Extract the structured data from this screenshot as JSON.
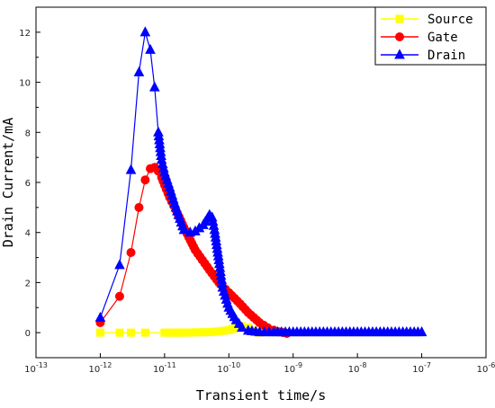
{
  "chart_data": {
    "type": "line",
    "title": "",
    "xlabel": "Transient time/s",
    "ylabel": "Drain Current/mA",
    "xscale": "log",
    "xlim": [
      1e-13,
      1e-06
    ],
    "ylim": [
      -1,
      13
    ],
    "xticks": [
      {
        "value": 1e-13,
        "base": "10",
        "exp": "-13"
      },
      {
        "value": 1e-12,
        "base": "10",
        "exp": "-12"
      },
      {
        "value": 1e-11,
        "base": "10",
        "exp": "-11"
      },
      {
        "value": 1e-10,
        "base": "10",
        "exp": "-10"
      },
      {
        "value": 1e-09,
        "base": "10",
        "exp": "-9"
      },
      {
        "value": 1e-08,
        "base": "10",
        "exp": "-8"
      },
      {
        "value": 1e-07,
        "base": "10",
        "exp": "-7"
      },
      {
        "value": 1e-06,
        "base": "10",
        "exp": "-6"
      }
    ],
    "yticks": [
      0,
      2,
      4,
      6,
      8,
      10,
      12
    ],
    "grid": false,
    "legend_position": "top-right",
    "series": [
      {
        "name": "Source",
        "color": "#ffff00",
        "marker": "square",
        "x": [
          1e-12,
          2e-12,
          3e-12,
          5e-12,
          1e-11,
          2e-11,
          3e-11,
          5e-11,
          7e-11,
          1e-10,
          1.3e-10,
          1.6e-10,
          2e-10,
          2.5e-10,
          3e-10
        ],
        "y": [
          0.0,
          0.0,
          0.0,
          0.0,
          0.0,
          0.0,
          0.01,
          0.02,
          0.05,
          0.1,
          0.2,
          0.26,
          0.2,
          0.08,
          0.0
        ]
      },
      {
        "name": "Gate",
        "color": "#ff0000",
        "marker": "circle",
        "x": [
          1e-12,
          2e-12,
          3e-12,
          4e-12,
          5e-12,
          6e-12,
          7e-12,
          8e-12,
          9e-12,
          1e-11,
          1.2e-11,
          1.5e-11,
          2e-11,
          3e-11,
          5e-11,
          7e-11,
          1e-10,
          1.5e-10,
          2e-10,
          3e-10,
          4e-10,
          5e-10,
          6e-10,
          7e-10,
          8e-10
        ],
        "y": [
          0.4,
          1.45,
          3.2,
          5.0,
          6.1,
          6.55,
          6.6,
          6.45,
          6.2,
          5.9,
          5.4,
          4.9,
          4.2,
          3.3,
          2.5,
          2.0,
          1.6,
          1.15,
          0.8,
          0.4,
          0.2,
          0.1,
          0.03,
          0.0,
          -0.03
        ]
      },
      {
        "name": "Drain",
        "color": "#0000ff",
        "marker": "triangle",
        "x": [
          1e-12,
          2e-12,
          3e-12,
          4e-12,
          5e-12,
          6e-12,
          7e-12,
          8e-12,
          9e-12,
          1e-11,
          1.2e-11,
          1.5e-11,
          2e-11,
          2.5e-11,
          3e-11,
          4e-11,
          5e-11,
          5.5e-11,
          6e-11,
          7e-11,
          8e-11,
          1e-10,
          1.3e-10,
          1.6e-10,
          2e-10,
          3e-10,
          5e-10,
          1e-09,
          1e-08,
          1e-07
        ],
        "y": [
          0.6,
          2.7,
          6.5,
          10.4,
          12.0,
          11.3,
          9.8,
          8.0,
          6.9,
          6.4,
          5.8,
          5.0,
          4.1,
          4.0,
          4.05,
          4.3,
          4.7,
          4.6,
          4.1,
          2.9,
          1.8,
          1.0,
          0.5,
          0.2,
          0.08,
          0.02,
          0.02,
          0.02,
          0.02,
          0.02
        ]
      }
    ]
  }
}
